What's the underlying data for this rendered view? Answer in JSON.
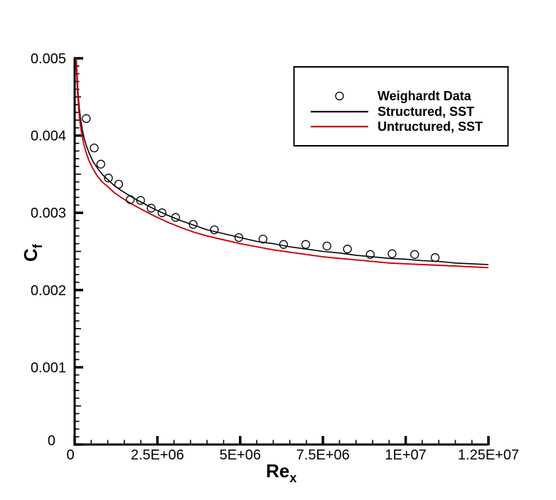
{
  "figure": {
    "background": "#ffffff",
    "axis_color": "#000000",
    "structured_color": "#000000",
    "unstructured_color": "#cc0000"
  },
  "legend": {
    "items": [
      {
        "label": "Weighardt Data",
        "symbol": "open-circle",
        "color": "#000000"
      },
      {
        "label": "Structured, SST",
        "symbol": "line",
        "color": "#000000"
      },
      {
        "label": "Untructured, SST",
        "symbol": "line",
        "color": "#cc0000"
      }
    ]
  },
  "axes": {
    "x": {
      "title": "Re",
      "title_subscript": "x",
      "range": [
        0,
        12500000
      ],
      "minor_step": 500000,
      "major_ticks": [
        {
          "value": 0,
          "label": "0"
        },
        {
          "value": 2500000,
          "label": "2.5E+06"
        },
        {
          "value": 5000000,
          "label": "5E+06"
        },
        {
          "value": 7500000,
          "label": "7.5E+06"
        },
        {
          "value": 10000000,
          "label": "1E+07"
        },
        {
          "value": 12500000,
          "label": "1.25E+07"
        }
      ]
    },
    "y": {
      "title": "C",
      "title_subscript": "f",
      "range": [
        0,
        0.005
      ],
      "minor_step": 0.0001,
      "medium_step": 0.0005,
      "major_ticks": [
        {
          "value": 0,
          "label": "0"
        },
        {
          "value": 0.001,
          "label": "0.001"
        },
        {
          "value": 0.002,
          "label": "0.002"
        },
        {
          "value": 0.003,
          "label": "0.003"
        },
        {
          "value": 0.004,
          "label": "0.004"
        },
        {
          "value": 0.005,
          "label": "0.005"
        }
      ]
    }
  },
  "chart_data": {
    "type": "line",
    "title": "",
    "xlabel": "Re_x",
    "ylabel": "C_f",
    "xlim": [
      0,
      12500000
    ],
    "ylim": [
      0,
      0.005
    ],
    "grid": false,
    "legend_position": "upper right",
    "series": [
      {
        "name": "Weighardt Data",
        "type": "scatter",
        "marker": "open-circle",
        "color": "#000000",
        "points": [
          [
            350000,
            0.00422
          ],
          [
            590000,
            0.00384
          ],
          [
            790000,
            0.00363
          ],
          [
            1020000,
            0.00345
          ],
          [
            1330000,
            0.00337
          ],
          [
            1680000,
            0.00317
          ],
          [
            1990000,
            0.00316
          ],
          [
            2310000,
            0.00306
          ],
          [
            2640000,
            0.003
          ],
          [
            3050000,
            0.00294
          ],
          [
            3580000,
            0.00285
          ],
          [
            4220000,
            0.00278
          ],
          [
            4960000,
            0.00268
          ],
          [
            5690000,
            0.00266
          ],
          [
            6310000,
            0.00259
          ],
          [
            6980000,
            0.00259
          ],
          [
            7620000,
            0.00257
          ],
          [
            8240000,
            0.00253
          ],
          [
            8930000,
            0.00246
          ],
          [
            9590000,
            0.00247
          ],
          [
            10270000,
            0.00246
          ],
          [
            10890000,
            0.00242
          ]
        ]
      },
      {
        "name": "Structured, SST",
        "type": "line",
        "color": "#000000",
        "points": [
          [
            50000,
            0.005
          ],
          [
            65000,
            0.00487
          ],
          [
            85000,
            0.0047
          ],
          [
            110000,
            0.00452
          ],
          [
            140000,
            0.00436
          ],
          [
            180000,
            0.00421
          ],
          [
            230000,
            0.00408
          ],
          [
            290000,
            0.00396
          ],
          [
            360000,
            0.00386
          ],
          [
            450000,
            0.00376
          ],
          [
            560000,
            0.00366
          ],
          [
            700000,
            0.00357
          ],
          [
            850000,
            0.00349
          ],
          [
            1000000,
            0.00343
          ],
          [
            1200000,
            0.00335
          ],
          [
            1400000,
            0.00329
          ],
          [
            1700000,
            0.00321
          ],
          [
            2000000,
            0.00314
          ],
          [
            2400000,
            0.00305
          ],
          [
            2800000,
            0.00297
          ],
          [
            3200000,
            0.0029
          ],
          [
            3600000,
            0.00284
          ],
          [
            4000000,
            0.00278
          ],
          [
            4500000,
            0.00273
          ],
          [
            5000000,
            0.00268
          ],
          [
            5500000,
            0.00263
          ],
          [
            6000000,
            0.0026
          ],
          [
            6500000,
            0.00256
          ],
          [
            7000000,
            0.00253
          ],
          [
            7500000,
            0.0025
          ],
          [
            8000000,
            0.00248
          ],
          [
            8500000,
            0.00245
          ],
          [
            9000000,
            0.00243
          ],
          [
            9500000,
            0.00241
          ],
          [
            10000000,
            0.0024
          ],
          [
            10500000,
            0.00238
          ],
          [
            11000000,
            0.00237
          ],
          [
            11500000,
            0.00235
          ],
          [
            12000000,
            0.00234
          ],
          [
            12500000,
            0.00233
          ]
        ]
      },
      {
        "name": "Untructured, SST",
        "type": "line",
        "color": "#cc0000",
        "points": [
          [
            40000,
            0.005
          ],
          [
            55000,
            0.00486
          ],
          [
            72000,
            0.00469
          ],
          [
            95000,
            0.00451
          ],
          [
            125000,
            0.00434
          ],
          [
            160000,
            0.00418
          ],
          [
            210000,
            0.00403
          ],
          [
            270000,
            0.0039
          ],
          [
            340000,
            0.00379
          ],
          [
            430000,
            0.00368
          ],
          [
            540000,
            0.00358
          ],
          [
            680000,
            0.00348
          ],
          [
            830000,
            0.0034
          ],
          [
            1000000,
            0.00334
          ],
          [
            1200000,
            0.00326
          ],
          [
            1400000,
            0.0032
          ],
          [
            1700000,
            0.00312
          ],
          [
            2000000,
            0.00305
          ],
          [
            2400000,
            0.00296
          ],
          [
            2800000,
            0.00288
          ],
          [
            3200000,
            0.00281
          ],
          [
            3600000,
            0.00275
          ],
          [
            4000000,
            0.0027
          ],
          [
            4500000,
            0.00265
          ],
          [
            5000000,
            0.0026
          ],
          [
            5500000,
            0.00256
          ],
          [
            6000000,
            0.00252
          ],
          [
            6500000,
            0.00249
          ],
          [
            7000000,
            0.00246
          ],
          [
            7500000,
            0.00243
          ],
          [
            8000000,
            0.00241
          ],
          [
            8500000,
            0.00239
          ],
          [
            9000000,
            0.00237
          ],
          [
            9500000,
            0.00235
          ],
          [
            10000000,
            0.00234
          ],
          [
            10500000,
            0.00233
          ],
          [
            11000000,
            0.00232
          ],
          [
            11500000,
            0.00231
          ],
          [
            12000000,
            0.0023
          ],
          [
            12500000,
            0.00229
          ]
        ]
      }
    ]
  }
}
